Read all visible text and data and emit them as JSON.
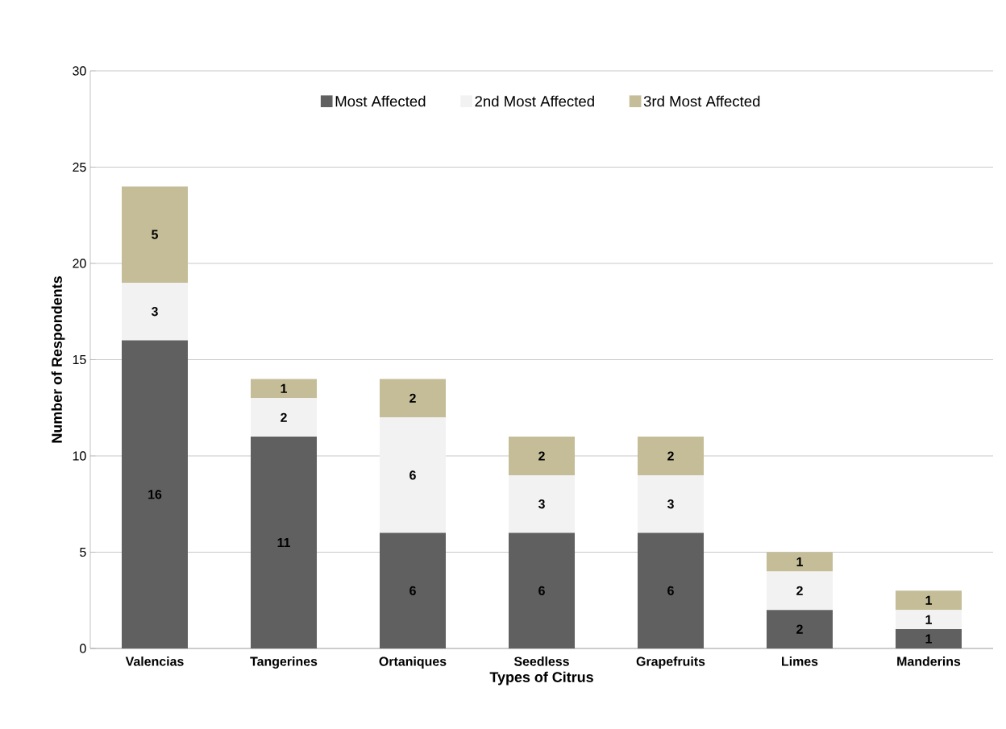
{
  "chart_data": {
    "type": "bar",
    "stacked": true,
    "xlabel": "Types of Citrus",
    "ylabel": "Number of Respondents",
    "categories": [
      "Valencias",
      "Tangerines",
      "Ortaniques",
      "Seedless",
      "Grapefruits",
      "Limes",
      "Manderins"
    ],
    "series": [
      {
        "name": "Most Affected",
        "color": "#606060",
        "values": [
          16,
          11,
          6,
          6,
          6,
          2,
          1
        ]
      },
      {
        "name": "2nd Most Affected",
        "color": "#f2f2f2",
        "values": [
          3,
          2,
          6,
          3,
          3,
          2,
          1
        ]
      },
      {
        "name": "3rd Most Affected",
        "color": "#c4bd97",
        "values": [
          5,
          1,
          2,
          2,
          2,
          1,
          1
        ]
      }
    ],
    "ylim": [
      0,
      30
    ],
    "yticks": [
      0,
      5,
      10,
      15,
      20,
      25,
      30
    ],
    "grid": "y",
    "legend": "top",
    "data_labels": true
  }
}
